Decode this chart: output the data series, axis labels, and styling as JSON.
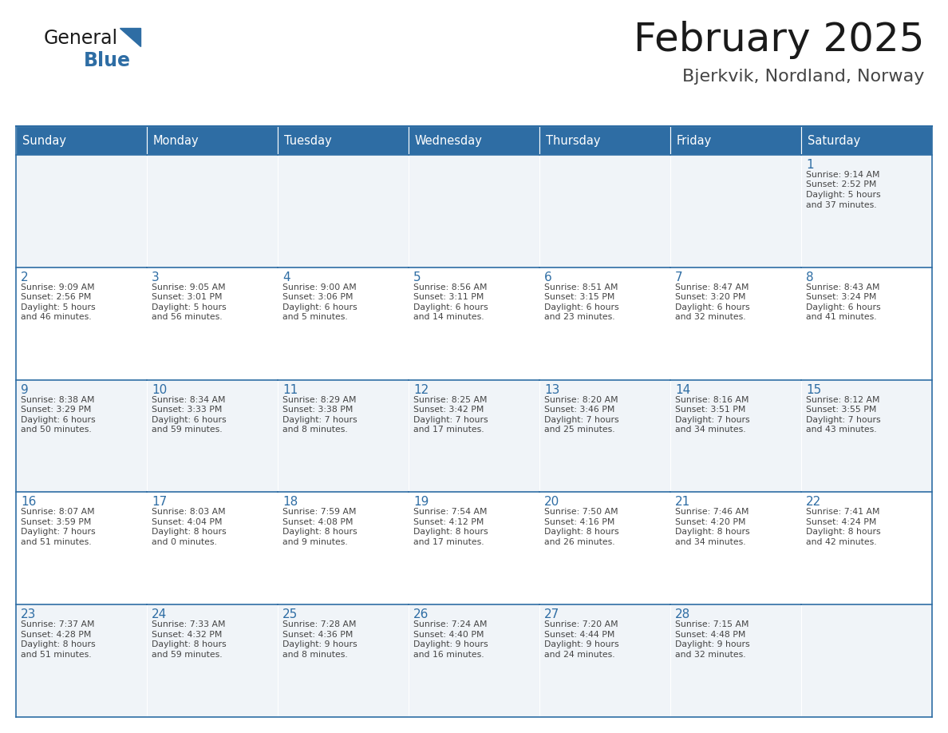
{
  "title": "February 2025",
  "subtitle": "Bjerkvik, Nordland, Norway",
  "days_of_week": [
    "Sunday",
    "Monday",
    "Tuesday",
    "Wednesday",
    "Thursday",
    "Friday",
    "Saturday"
  ],
  "header_bg": "#2E6DA4",
  "header_text": "#FFFFFF",
  "cell_bg_odd": "#F0F4F8",
  "cell_bg_even": "#FFFFFF",
  "border_color": "#2E6DA4",
  "text_color": "#444444",
  "title_color": "#1a1a1a",
  "subtitle_color": "#444444",
  "logo_general_color": "#1a1a1a",
  "logo_blue_color": "#2E6DA4",
  "logo_triangle_color": "#2E6DA4",
  "calendar": [
    [
      {
        "day": "",
        "info": ""
      },
      {
        "day": "",
        "info": ""
      },
      {
        "day": "",
        "info": ""
      },
      {
        "day": "",
        "info": ""
      },
      {
        "day": "",
        "info": ""
      },
      {
        "day": "",
        "info": ""
      },
      {
        "day": "1",
        "info": "Sunrise: 9:14 AM\nSunset: 2:52 PM\nDaylight: 5 hours\nand 37 minutes."
      }
    ],
    [
      {
        "day": "2",
        "info": "Sunrise: 9:09 AM\nSunset: 2:56 PM\nDaylight: 5 hours\nand 46 minutes."
      },
      {
        "day": "3",
        "info": "Sunrise: 9:05 AM\nSunset: 3:01 PM\nDaylight: 5 hours\nand 56 minutes."
      },
      {
        "day": "4",
        "info": "Sunrise: 9:00 AM\nSunset: 3:06 PM\nDaylight: 6 hours\nand 5 minutes."
      },
      {
        "day": "5",
        "info": "Sunrise: 8:56 AM\nSunset: 3:11 PM\nDaylight: 6 hours\nand 14 minutes."
      },
      {
        "day": "6",
        "info": "Sunrise: 8:51 AM\nSunset: 3:15 PM\nDaylight: 6 hours\nand 23 minutes."
      },
      {
        "day": "7",
        "info": "Sunrise: 8:47 AM\nSunset: 3:20 PM\nDaylight: 6 hours\nand 32 minutes."
      },
      {
        "day": "8",
        "info": "Sunrise: 8:43 AM\nSunset: 3:24 PM\nDaylight: 6 hours\nand 41 minutes."
      }
    ],
    [
      {
        "day": "9",
        "info": "Sunrise: 8:38 AM\nSunset: 3:29 PM\nDaylight: 6 hours\nand 50 minutes."
      },
      {
        "day": "10",
        "info": "Sunrise: 8:34 AM\nSunset: 3:33 PM\nDaylight: 6 hours\nand 59 minutes."
      },
      {
        "day": "11",
        "info": "Sunrise: 8:29 AM\nSunset: 3:38 PM\nDaylight: 7 hours\nand 8 minutes."
      },
      {
        "day": "12",
        "info": "Sunrise: 8:25 AM\nSunset: 3:42 PM\nDaylight: 7 hours\nand 17 minutes."
      },
      {
        "day": "13",
        "info": "Sunrise: 8:20 AM\nSunset: 3:46 PM\nDaylight: 7 hours\nand 25 minutes."
      },
      {
        "day": "14",
        "info": "Sunrise: 8:16 AM\nSunset: 3:51 PM\nDaylight: 7 hours\nand 34 minutes."
      },
      {
        "day": "15",
        "info": "Sunrise: 8:12 AM\nSunset: 3:55 PM\nDaylight: 7 hours\nand 43 minutes."
      }
    ],
    [
      {
        "day": "16",
        "info": "Sunrise: 8:07 AM\nSunset: 3:59 PM\nDaylight: 7 hours\nand 51 minutes."
      },
      {
        "day": "17",
        "info": "Sunrise: 8:03 AM\nSunset: 4:04 PM\nDaylight: 8 hours\nand 0 minutes."
      },
      {
        "day": "18",
        "info": "Sunrise: 7:59 AM\nSunset: 4:08 PM\nDaylight: 8 hours\nand 9 minutes."
      },
      {
        "day": "19",
        "info": "Sunrise: 7:54 AM\nSunset: 4:12 PM\nDaylight: 8 hours\nand 17 minutes."
      },
      {
        "day": "20",
        "info": "Sunrise: 7:50 AM\nSunset: 4:16 PM\nDaylight: 8 hours\nand 26 minutes."
      },
      {
        "day": "21",
        "info": "Sunrise: 7:46 AM\nSunset: 4:20 PM\nDaylight: 8 hours\nand 34 minutes."
      },
      {
        "day": "22",
        "info": "Sunrise: 7:41 AM\nSunset: 4:24 PM\nDaylight: 8 hours\nand 42 minutes."
      }
    ],
    [
      {
        "day": "23",
        "info": "Sunrise: 7:37 AM\nSunset: 4:28 PM\nDaylight: 8 hours\nand 51 minutes."
      },
      {
        "day": "24",
        "info": "Sunrise: 7:33 AM\nSunset: 4:32 PM\nDaylight: 8 hours\nand 59 minutes."
      },
      {
        "day": "25",
        "info": "Sunrise: 7:28 AM\nSunset: 4:36 PM\nDaylight: 9 hours\nand 8 minutes."
      },
      {
        "day": "26",
        "info": "Sunrise: 7:24 AM\nSunset: 4:40 PM\nDaylight: 9 hours\nand 16 minutes."
      },
      {
        "day": "27",
        "info": "Sunrise: 7:20 AM\nSunset: 4:44 PM\nDaylight: 9 hours\nand 24 minutes."
      },
      {
        "day": "28",
        "info": "Sunrise: 7:15 AM\nSunset: 4:48 PM\nDaylight: 9 hours\nand 32 minutes."
      },
      {
        "day": "",
        "info": ""
      }
    ]
  ]
}
